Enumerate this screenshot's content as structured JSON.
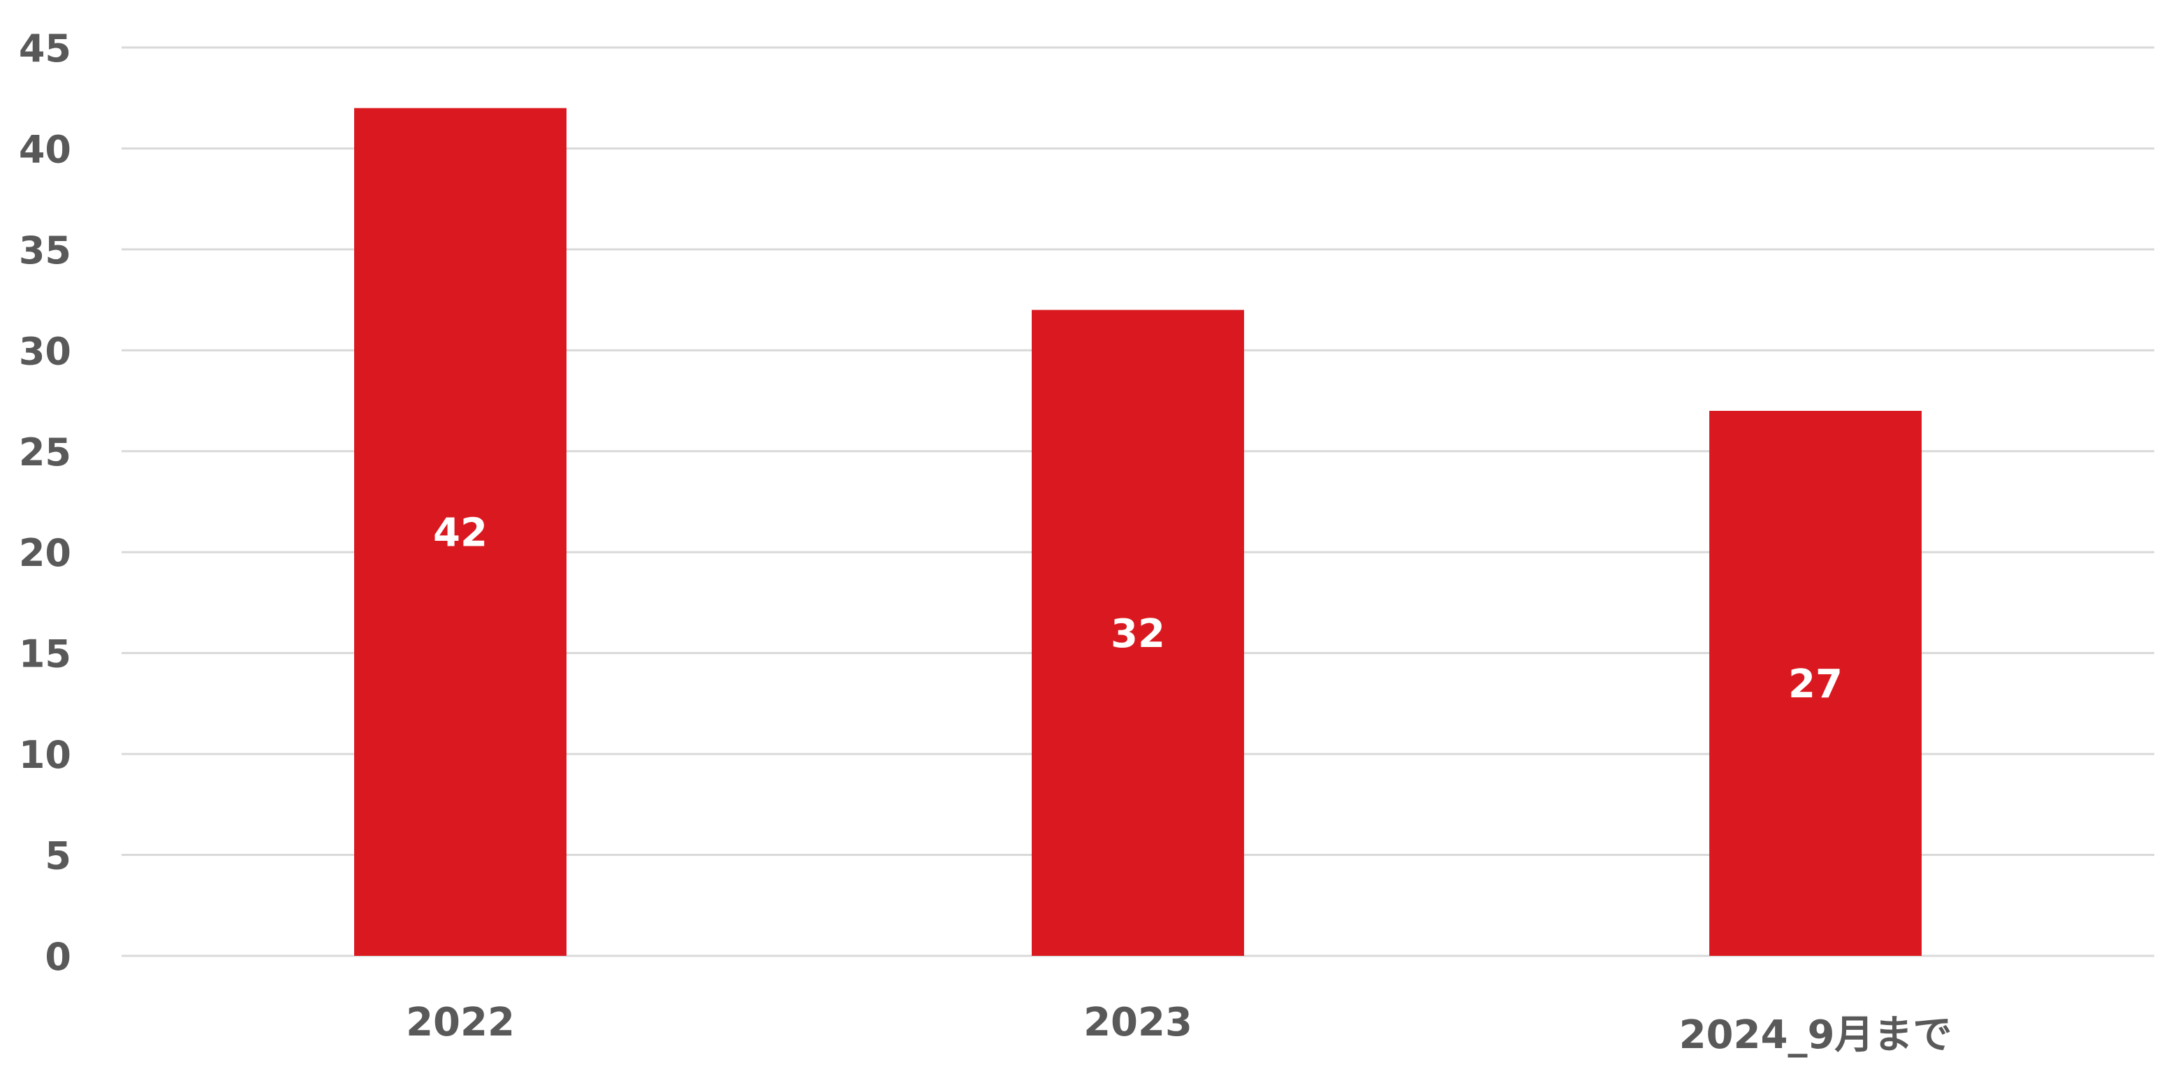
{
  "chart_data": {
    "type": "bar",
    "title": "",
    "xlabel": "",
    "ylabel": "",
    "categories": [
      "2022",
      "2023",
      "2024_9月まで"
    ],
    "values": [
      42,
      32,
      27
    ],
    "data_labels": [
      "42",
      "32",
      "27"
    ],
    "ylim": [
      0,
      45
    ],
    "yticks": [
      0,
      5,
      10,
      15,
      20,
      25,
      30,
      35,
      40,
      45
    ],
    "ytick_labels": [
      "0",
      "5",
      "10",
      "15",
      "20",
      "25",
      "30",
      "35",
      "40",
      "45"
    ],
    "grid": true,
    "legend": "none",
    "colors": {
      "bar": "#D9191F",
      "text": "#595959",
      "grid": "#D9D9D9",
      "data_label": "#FFFFFF"
    }
  }
}
